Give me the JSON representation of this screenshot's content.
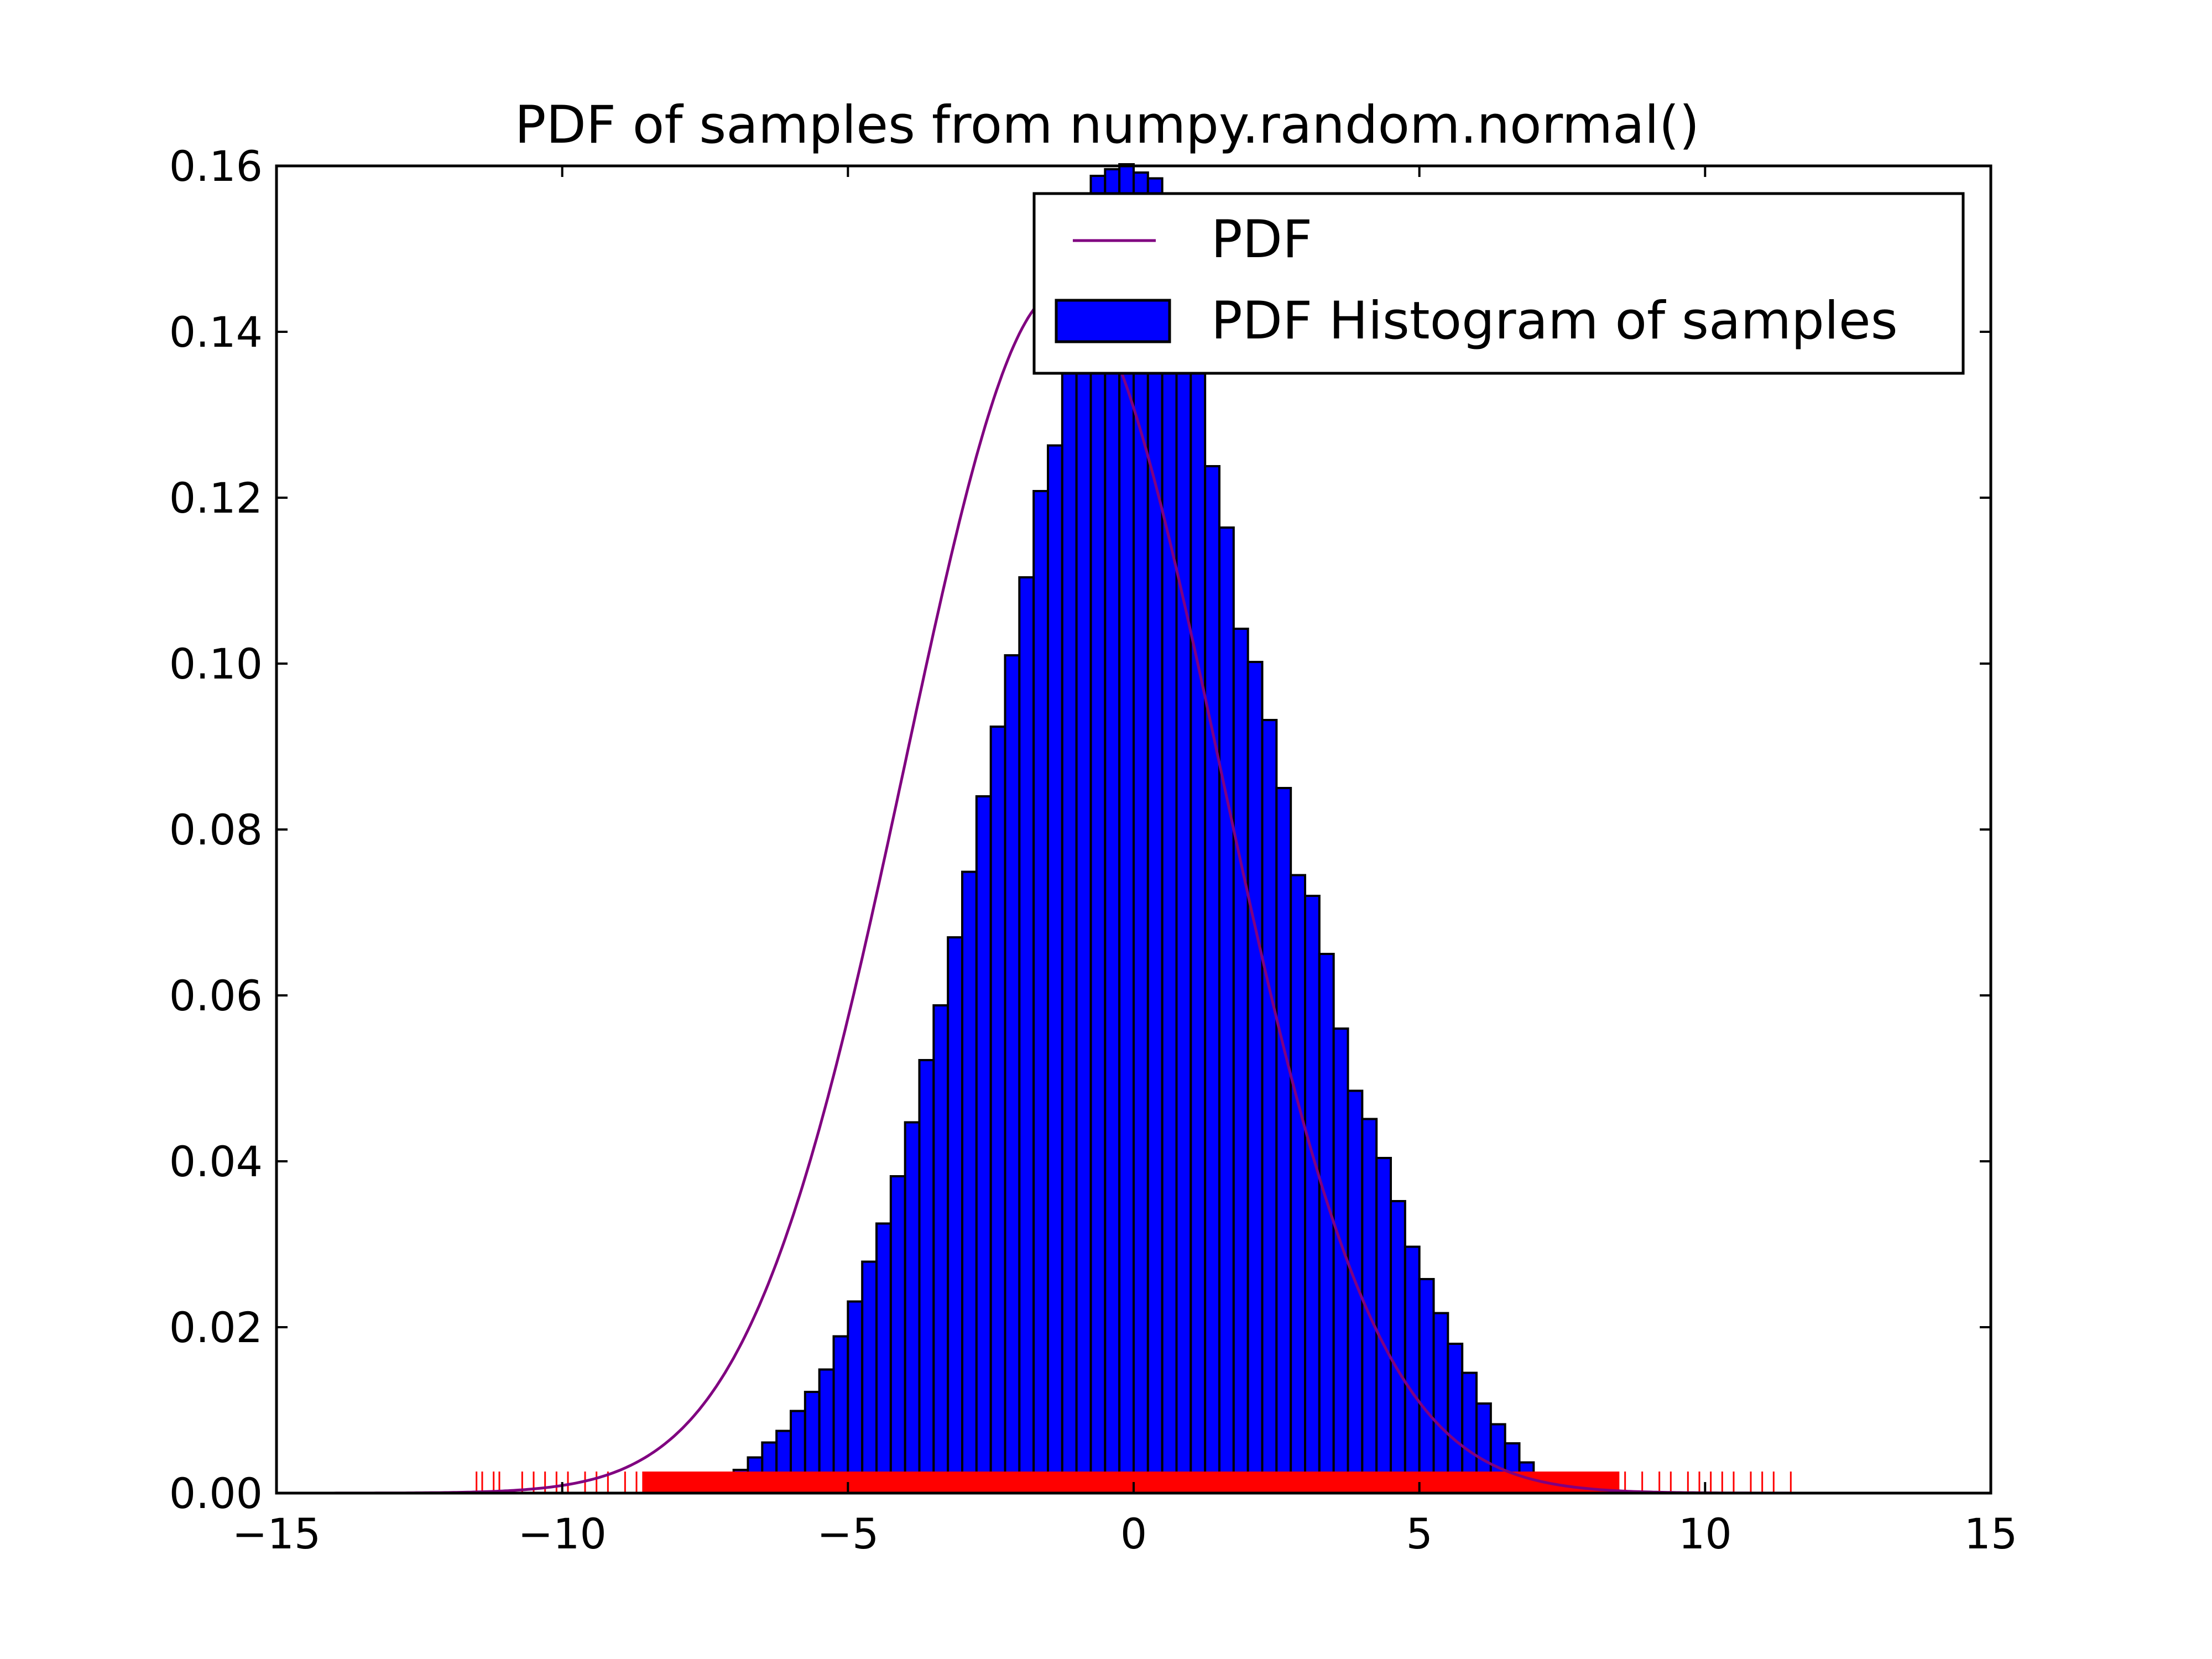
{
  "chart_data": {
    "type": "bar",
    "title": "PDF of samples from numpy.random.normal()",
    "xlabel": "",
    "ylabel": "",
    "xlim": [
      -15,
      15
    ],
    "ylim": [
      0,
      0.16
    ],
    "grid": false,
    "legend_placement": "top-right",
    "xticks": [
      -15,
      -10,
      -5,
      0,
      5,
      10,
      15
    ],
    "xtick_labels": [
      "−15",
      "−10",
      "−5",
      "0",
      "5",
      "10",
      "15"
    ],
    "yticks": [
      0,
      0.02,
      0.04,
      0.06,
      0.08,
      0.1,
      0.12,
      0.14,
      0.16
    ],
    "ytick_labels": [
      "0.00",
      "0.02",
      "0.04",
      "0.06",
      "0.08",
      "0.10",
      "0.12",
      "0.14",
      "0.16"
    ],
    "legend": [
      "PDF",
      "PDF Histogram of samples"
    ],
    "colors": {
      "pdf_line": "#800080",
      "bars": "#0000ff",
      "bar_edge": "#000000",
      "rug": "#ff0000"
    },
    "histogram": {
      "name": "PDF Histogram of samples",
      "bin_width": 0.25,
      "bin_left_edges": [
        -7.25,
        -7.0,
        -6.75,
        -6.5,
        -6.25,
        -6.0,
        -5.75,
        -5.5,
        -5.25,
        -5.0,
        -4.75,
        -4.5,
        -4.25,
        -4.0,
        -3.75,
        -3.5,
        -3.25,
        -3.0,
        -2.75,
        -2.5,
        -2.25,
        -2.0,
        -1.75,
        -1.5,
        -1.25,
        -1.0,
        -0.75,
        -0.5,
        -0.25,
        0.0,
        0.25,
        0.5,
        0.75,
        1.0,
        1.25,
        1.5,
        1.75,
        2.0,
        2.25,
        2.5,
        2.75,
        3.0,
        3.25,
        3.5,
        3.75,
        4.0,
        4.25,
        4.5,
        4.75,
        5.0,
        5.25,
        5.5,
        5.75,
        6.0,
        6.25,
        6.5,
        6.75,
        7.0
      ],
      "values": [
        0.0016,
        0.0028,
        0.0043,
        0.0061,
        0.0075,
        0.0099,
        0.0122,
        0.0149,
        0.0189,
        0.0231,
        0.0279,
        0.0325,
        0.0382,
        0.0447,
        0.0522,
        0.0588,
        0.067,
        0.0749,
        0.084,
        0.0924,
        0.101,
        0.1104,
        0.1208,
        0.1263,
        0.141,
        0.149,
        0.1588,
        0.1596,
        0.1602,
        0.1592,
        0.1585,
        0.154,
        0.144,
        0.1385,
        0.1238,
        0.1164,
        0.1042,
        0.1002,
        0.0932,
        0.085,
        0.0745,
        0.072,
        0.065,
        0.056,
        0.0485,
        0.0451,
        0.0404,
        0.0352,
        0.0297,
        0.0258,
        0.0217,
        0.018,
        0.0145,
        0.0108,
        0.0083,
        0.006,
        0.0037,
        0.0019
      ]
    },
    "pdf_curve": {
      "name": "PDF",
      "mean": -1.25,
      "std": 2.75,
      "x_range": [
        -15,
        15
      ]
    },
    "rug": {
      "y_top": 0.0026,
      "sparse_x": [
        -11.5,
        -11.4,
        -11.2,
        -11.1,
        -10.7,
        -10.5,
        -10.3,
        -10.1,
        -9.9,
        -9.6,
        -9.4,
        -9.2,
        -8.9,
        -8.7,
        8.6,
        8.9,
        9.2,
        9.4,
        9.7,
        9.9,
        10.1,
        10.3,
        10.5,
        10.8,
        11.0,
        11.2,
        11.5
      ]
    }
  }
}
